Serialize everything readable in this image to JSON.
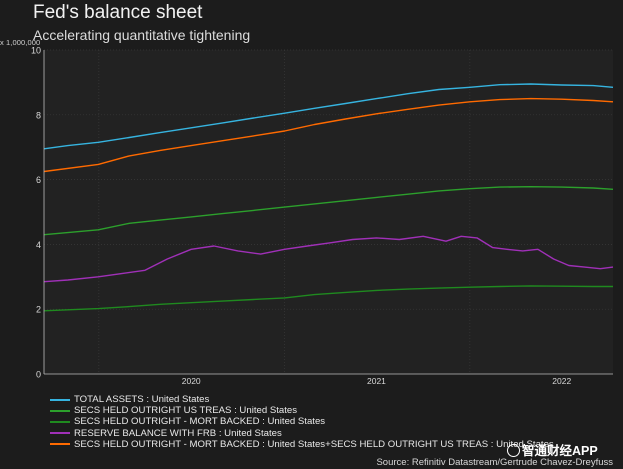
{
  "title": "Fed's balance sheet",
  "subtitle": "Accelerating quantitative tightening",
  "unit_label": "x 1,000,000",
  "source": "Source: Refinitiv Datastream/Gertrude Chavez-Dreyfuss",
  "watermark": "智通财经APP",
  "chart_data": {
    "type": "line",
    "title": "Fed's balance sheet",
    "subtitle": "Accelerating quantitative tightening",
    "ylabel": "x 1,000,000",
    "ylim": [
      0,
      10
    ],
    "yticks": [
      "0",
      "2",
      "4",
      "6",
      "8",
      "10"
    ],
    "x_range": [
      "2019-09-15",
      "2022-10-10"
    ],
    "xticks": [
      {
        "label": "2020",
        "at": "2020-01-01",
        "pos": "2020-07-01"
      },
      {
        "label": "2021",
        "at": "2021-01-01",
        "pos": "2021-07-01"
      },
      {
        "label": "2022",
        "at": "2022-01-01",
        "pos": "2022-07-01"
      }
    ],
    "grid": true,
    "legend": "bottom",
    "series": [
      {
        "name": "TOTAL ASSETS : United States",
        "color": "#36b4e0",
        "x": [
          "2019-09-15",
          "2019-11-01",
          "2019-12-31",
          "2020-03-01",
          "2020-05-01",
          "2020-07-01",
          "2020-09-01",
          "2020-11-01",
          "2021-01-01",
          "2021-03-01",
          "2021-05-01",
          "2021-07-01",
          "2021-09-01",
          "2021-11-01",
          "2022-01-01",
          "2022-03-01",
          "2022-05-01",
          "2022-07-01",
          "2022-09-01",
          "2022-10-10"
        ],
        "y": [
          6.95,
          7.05,
          7.15,
          7.3,
          7.45,
          7.6,
          7.75,
          7.9,
          8.05,
          8.2,
          8.35,
          8.5,
          8.65,
          8.78,
          8.85,
          8.93,
          8.95,
          8.92,
          8.9,
          8.85
        ]
      },
      {
        "name": "SECS HELD OUTRIGHT US TREAS : United States",
        "color": "#2ca02c",
        "x": [
          "2019-09-15",
          "2019-12-31",
          "2020-03-01",
          "2020-05-01",
          "2020-07-01",
          "2020-09-01",
          "2020-11-01",
          "2021-01-01",
          "2021-03-01",
          "2021-05-01",
          "2021-07-01",
          "2021-09-01",
          "2021-11-01",
          "2022-01-01",
          "2022-03-01",
          "2022-05-01",
          "2022-07-01",
          "2022-09-01",
          "2022-10-10"
        ],
        "y": [
          4.3,
          4.45,
          4.65,
          4.75,
          4.85,
          4.95,
          5.05,
          5.15,
          5.25,
          5.35,
          5.45,
          5.55,
          5.65,
          5.72,
          5.77,
          5.78,
          5.77,
          5.74,
          5.7
        ]
      },
      {
        "name": "SECS HELD OUTRIGHT - MORT BACKED : United States",
        "color": "#1f8a1f",
        "x": [
          "2019-09-15",
          "2019-12-31",
          "2020-03-01",
          "2020-05-01",
          "2020-07-01",
          "2020-09-01",
          "2020-11-01",
          "2021-01-01",
          "2021-03-01",
          "2021-05-01",
          "2021-07-01",
          "2021-09-01",
          "2021-11-01",
          "2022-01-01",
          "2022-03-01",
          "2022-05-01",
          "2022-07-01",
          "2022-09-01",
          "2022-10-10"
        ],
        "y": [
          1.95,
          2.02,
          2.08,
          2.15,
          2.2,
          2.25,
          2.3,
          2.35,
          2.45,
          2.52,
          2.58,
          2.62,
          2.65,
          2.68,
          2.7,
          2.72,
          2.71,
          2.7,
          2.7
        ]
      },
      {
        "name": "RESERVE BALANCE WITH FRB : United States",
        "color": "#a030b8",
        "x": [
          "2019-09-15",
          "2019-11-01",
          "2019-12-31",
          "2020-02-15",
          "2020-04-01",
          "2020-05-15",
          "2020-07-01",
          "2020-08-15",
          "2020-10-01",
          "2020-11-15",
          "2021-01-01",
          "2021-02-15",
          "2021-04-01",
          "2021-05-15",
          "2021-07-01",
          "2021-08-15",
          "2021-10-01",
          "2021-11-15",
          "2021-12-15",
          "2022-01-15",
          "2022-02-15",
          "2022-03-15",
          "2022-04-15",
          "2022-05-15",
          "2022-06-15",
          "2022-07-15",
          "2022-08-15",
          "2022-09-15",
          "2022-10-10"
        ],
        "y": [
          2.85,
          2.9,
          3.0,
          3.1,
          3.2,
          3.55,
          3.85,
          3.95,
          3.8,
          3.7,
          3.85,
          3.95,
          4.05,
          4.15,
          4.2,
          4.15,
          4.25,
          4.1,
          4.25,
          4.2,
          3.9,
          3.85,
          3.8,
          3.85,
          3.55,
          3.35,
          3.3,
          3.25,
          3.3
        ]
      },
      {
        "name": "SECS HELD OUTRIGHT - MORT BACKED : United States+SECS HELD OUTRIGHT US TREAS : United States",
        "color": "#ff6a00",
        "x": [
          "2019-09-15",
          "2019-12-31",
          "2020-03-01",
          "2020-05-01",
          "2020-07-01",
          "2020-09-01",
          "2020-11-01",
          "2021-01-01",
          "2021-03-01",
          "2021-05-01",
          "2021-07-01",
          "2021-09-01",
          "2021-11-01",
          "2022-01-01",
          "2022-03-01",
          "2022-05-01",
          "2022-07-01",
          "2022-09-01",
          "2022-10-10"
        ],
        "y": [
          6.25,
          6.47,
          6.73,
          6.9,
          7.05,
          7.2,
          7.35,
          7.5,
          7.7,
          7.87,
          8.03,
          8.17,
          8.3,
          8.4,
          8.47,
          8.5,
          8.48,
          8.44,
          8.4
        ]
      }
    ]
  }
}
